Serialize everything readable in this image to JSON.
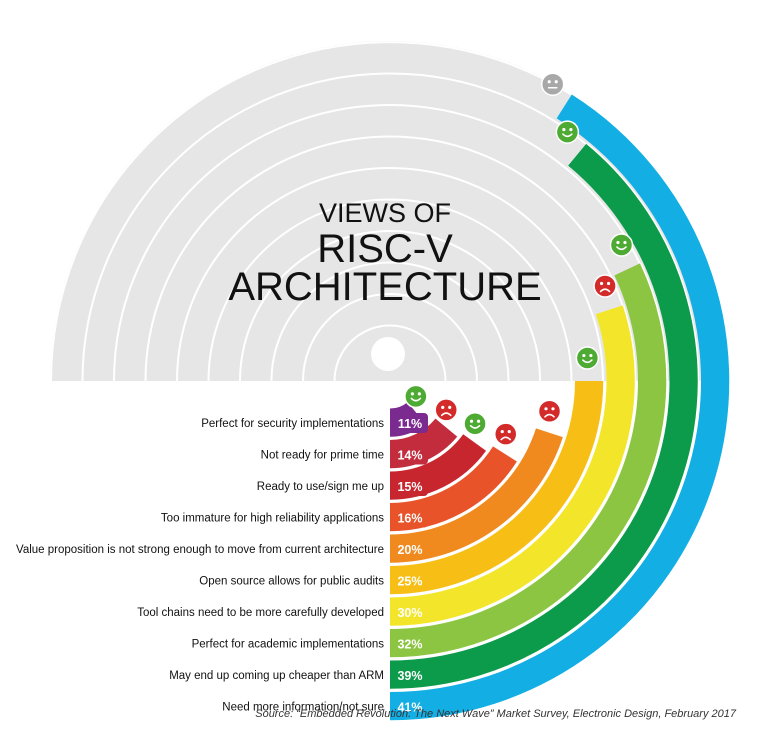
{
  "chart_data": {
    "type": "bar",
    "title_lines": [
      "VIEWS OF",
      "RISC-V",
      "ARCHITECTURE"
    ],
    "source": "Source: “Embedded Revolution: The Next Wave” Market Survey, Electronic Design, February 2017",
    "max_percent": 50,
    "categories": [
      "Perfect for security implementations",
      "Not ready for prime time",
      "Ready to use/sign me up",
      "Too immature for high reliability applications",
      "Value proposition is not strong enough to move from current architecture",
      "Open source allows for public audits",
      "Tool chains need to be more carefully developed",
      "Perfect for academic implementations",
      "May end up coming up cheaper than ARM",
      "Need more information/not sure"
    ],
    "values": [
      11,
      14,
      15,
      16,
      20,
      25,
      30,
      32,
      39,
      41
    ],
    "labels": [
      "11%",
      "14%",
      "15%",
      "16%",
      "20%",
      "25%",
      "30%",
      "32%",
      "39%",
      "41%"
    ],
    "colors": [
      "#7b2b8f",
      "#c22c3c",
      "#c8262e",
      "#e8532a",
      "#f08a1e",
      "#f7bf16",
      "#f3e62a",
      "#8cc542",
      "#0c9a4b",
      "#13aee4"
    ],
    "sentiment": [
      "positive",
      "negative",
      "positive",
      "negative",
      "negative",
      "positive",
      "negative",
      "positive",
      "positive",
      "neutral"
    ],
    "sentiment_colors": {
      "positive": "#4daa32",
      "negative": "#d32a2a",
      "neutral": "#a8a8a8"
    },
    "background_color": "#e6e6e6"
  }
}
